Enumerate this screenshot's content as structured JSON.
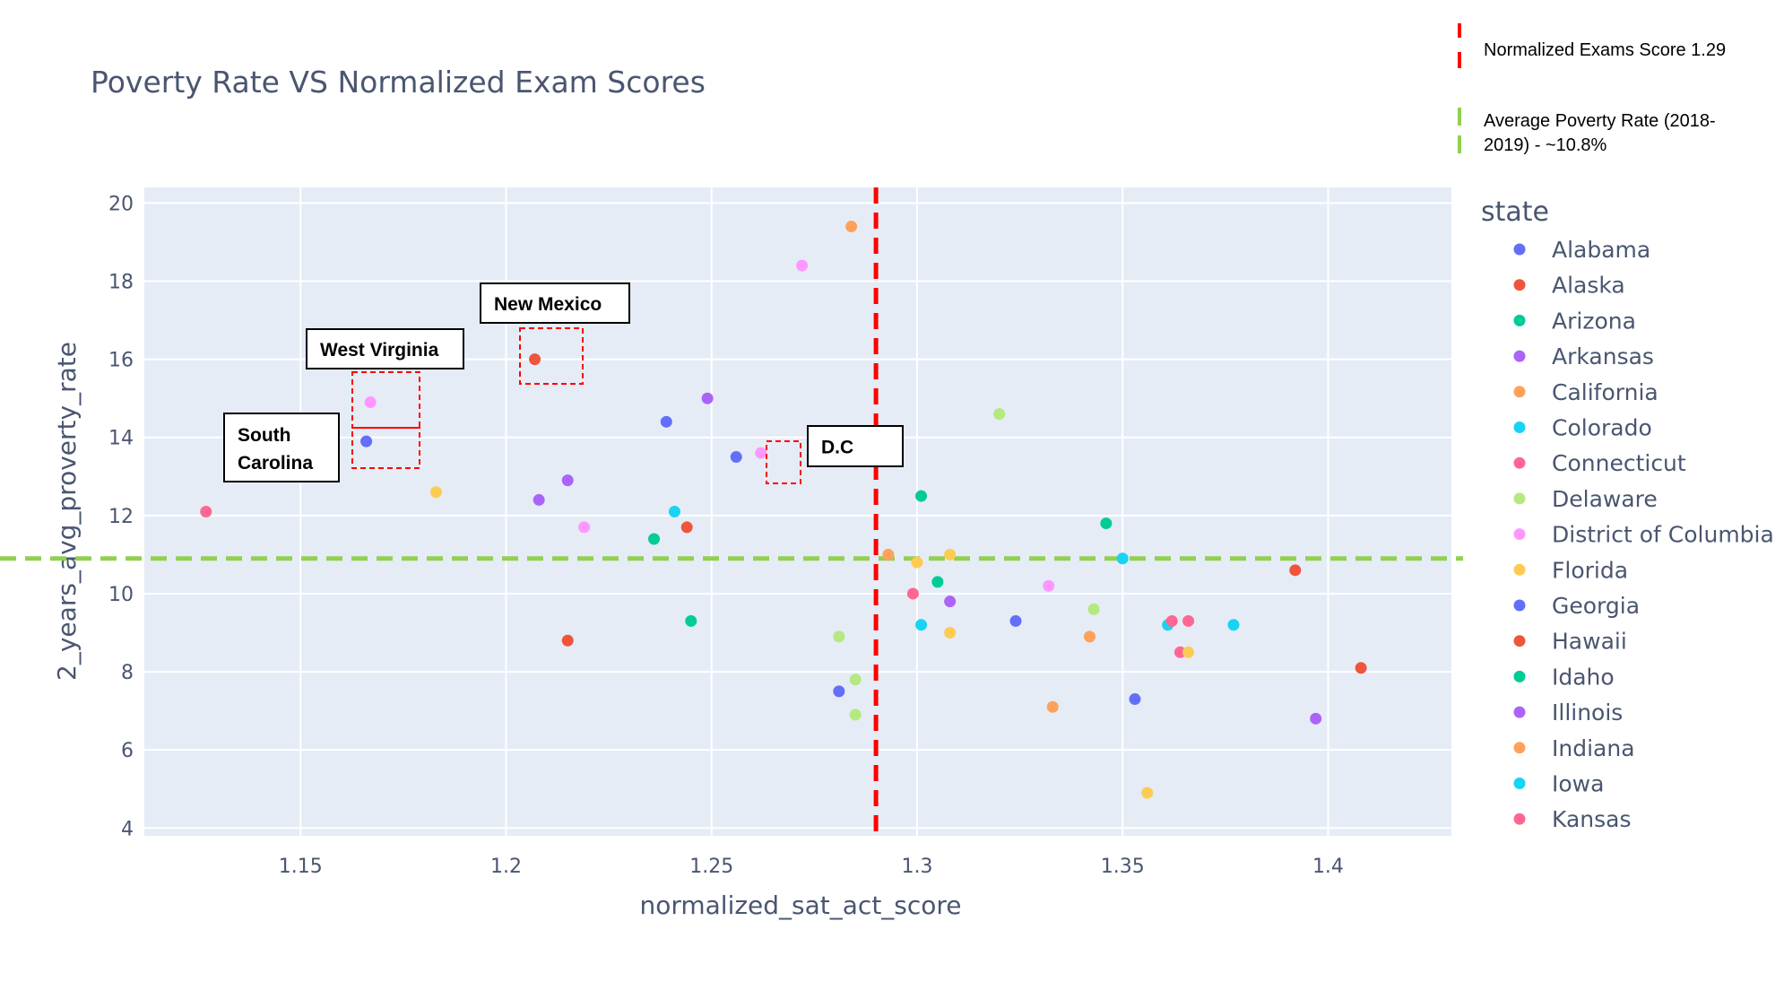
{
  "chart_data": {
    "type": "scatter",
    "title": "Poverty Rate VS Normalized Exam Scores",
    "xlabel": "normalized_sat_act_score",
    "ylabel": "2_years_avg_proverty_rate",
    "xlim": [
      1.112,
      1.43
    ],
    "ylim": [
      3.8,
      20.4
    ],
    "x_ticks": [
      {
        "value": 1.15,
        "label": "1.15"
      },
      {
        "value": 1.2,
        "label": "1.2"
      },
      {
        "value": 1.25,
        "label": "1.25"
      },
      {
        "value": 1.3,
        "label": "1.3"
      },
      {
        "value": 1.35,
        "label": "1.35"
      },
      {
        "value": 1.4,
        "label": "1.4"
      }
    ],
    "y_ticks": [
      {
        "value": 4,
        "label": "4"
      },
      {
        "value": 6,
        "label": "6"
      },
      {
        "value": 8,
        "label": "8"
      },
      {
        "value": 10,
        "label": "10"
      },
      {
        "value": 12,
        "label": "12"
      },
      {
        "value": 14,
        "label": "14"
      },
      {
        "value": 16,
        "label": "16"
      },
      {
        "value": 18,
        "label": "18"
      },
      {
        "value": 20,
        "label": "20"
      }
    ],
    "grid": true,
    "plot_background": "#e5ecf6",
    "legend": {
      "title": "state",
      "position": "right"
    },
    "series": [
      {
        "name": "Alabama",
        "color": "#636efa"
      },
      {
        "name": "Alaska",
        "color": "#ef553b"
      },
      {
        "name": "Arizona",
        "color": "#00cc96"
      },
      {
        "name": "Arkansas",
        "color": "#ab63fa"
      },
      {
        "name": "California",
        "color": "#ffa15a"
      },
      {
        "name": "Colorado",
        "color": "#19d3f3"
      },
      {
        "name": "Connecticut",
        "color": "#ff6692"
      },
      {
        "name": "Delaware",
        "color": "#b6e880"
      },
      {
        "name": "District of Columbia",
        "color": "#ff97ff"
      },
      {
        "name": "Florida",
        "color": "#fecb52"
      },
      {
        "name": "Georgia",
        "color": "#636efa"
      },
      {
        "name": "Hawaii",
        "color": "#ef553b"
      },
      {
        "name": "Idaho",
        "color": "#00cc96"
      },
      {
        "name": "Illinois",
        "color": "#ab63fa"
      },
      {
        "name": "Indiana",
        "color": "#ffa15a"
      },
      {
        "name": "Iowa",
        "color": "#19d3f3"
      },
      {
        "name": "Kansas",
        "color": "#ff6692"
      }
    ],
    "points": [
      {
        "x": 1.127,
        "y": 12.1,
        "color": "#ff6692"
      },
      {
        "x": 1.166,
        "y": 13.9,
        "color": "#636efa"
      },
      {
        "x": 1.167,
        "y": 14.9,
        "color": "#ff97ff"
      },
      {
        "x": 1.183,
        "y": 12.6,
        "color": "#fecb52"
      },
      {
        "x": 1.207,
        "y": 16.0,
        "color": "#ef553b"
      },
      {
        "x": 1.208,
        "y": 12.4,
        "color": "#ab63fa"
      },
      {
        "x": 1.215,
        "y": 12.9,
        "color": "#ab63fa"
      },
      {
        "x": 1.215,
        "y": 8.8,
        "color": "#ef553b"
      },
      {
        "x": 1.219,
        "y": 11.7,
        "color": "#ff97ff"
      },
      {
        "x": 1.236,
        "y": 11.4,
        "color": "#00cc96"
      },
      {
        "x": 1.239,
        "y": 14.4,
        "color": "#636efa"
      },
      {
        "x": 1.241,
        "y": 12.1,
        "color": "#19d3f3"
      },
      {
        "x": 1.244,
        "y": 11.7,
        "color": "#ef553b"
      },
      {
        "x": 1.245,
        "y": 9.3,
        "color": "#00cc96"
      },
      {
        "x": 1.249,
        "y": 15.0,
        "color": "#ab63fa"
      },
      {
        "x": 1.256,
        "y": 13.5,
        "color": "#636efa"
      },
      {
        "x": 1.262,
        "y": 13.6,
        "color": "#ff97ff"
      },
      {
        "x": 1.272,
        "y": 18.4,
        "color": "#ff97ff"
      },
      {
        "x": 1.281,
        "y": 8.9,
        "color": "#b6e880"
      },
      {
        "x": 1.281,
        "y": 7.5,
        "color": "#636efa"
      },
      {
        "x": 1.284,
        "y": 19.4,
        "color": "#ffa15a"
      },
      {
        "x": 1.285,
        "y": 7.8,
        "color": "#b6e880"
      },
      {
        "x": 1.285,
        "y": 6.9,
        "color": "#b6e880"
      },
      {
        "x": 1.293,
        "y": 11.0,
        "color": "#ffa15a"
      },
      {
        "x": 1.299,
        "y": 10.0,
        "color": "#ff6692"
      },
      {
        "x": 1.3,
        "y": 10.8,
        "color": "#fecb52"
      },
      {
        "x": 1.301,
        "y": 12.5,
        "color": "#00cc96"
      },
      {
        "x": 1.301,
        "y": 9.2,
        "color": "#19d3f3"
      },
      {
        "x": 1.305,
        "y": 10.3,
        "color": "#00cc96"
      },
      {
        "x": 1.308,
        "y": 11.0,
        "color": "#fecb52"
      },
      {
        "x": 1.308,
        "y": 9.8,
        "color": "#ab63fa"
      },
      {
        "x": 1.308,
        "y": 9.0,
        "color": "#fecb52"
      },
      {
        "x": 1.32,
        "y": 14.6,
        "color": "#b6e880"
      },
      {
        "x": 1.324,
        "y": 9.3,
        "color": "#636efa"
      },
      {
        "x": 1.332,
        "y": 10.2,
        "color": "#ff97ff"
      },
      {
        "x": 1.333,
        "y": 7.1,
        "color": "#ffa15a"
      },
      {
        "x": 1.342,
        "y": 8.9,
        "color": "#ffa15a"
      },
      {
        "x": 1.343,
        "y": 9.6,
        "color": "#b6e880"
      },
      {
        "x": 1.346,
        "y": 11.8,
        "color": "#00cc96"
      },
      {
        "x": 1.35,
        "y": 10.9,
        "color": "#19d3f3"
      },
      {
        "x": 1.353,
        "y": 7.3,
        "color": "#636efa"
      },
      {
        "x": 1.356,
        "y": 4.9,
        "color": "#fecb52"
      },
      {
        "x": 1.361,
        "y": 9.2,
        "color": "#19d3f3"
      },
      {
        "x": 1.362,
        "y": 9.3,
        "color": "#ff6692"
      },
      {
        "x": 1.364,
        "y": 8.5,
        "color": "#ff6692"
      },
      {
        "x": 1.366,
        "y": 8.5,
        "color": "#fecb52"
      },
      {
        "x": 1.366,
        "y": 9.3,
        "color": "#ff6692"
      },
      {
        "x": 1.377,
        "y": 9.2,
        "color": "#19d3f3"
      },
      {
        "x": 1.392,
        "y": 10.6,
        "color": "#ef553b"
      },
      {
        "x": 1.397,
        "y": 6.8,
        "color": "#ab63fa"
      },
      {
        "x": 1.408,
        "y": 8.1,
        "color": "#ef553b"
      }
    ],
    "reference_lines": [
      {
        "orientation": "vertical",
        "value": 1.29,
        "color": "#ff0000",
        "label": "Normalized Exams Score  1.29"
      },
      {
        "orientation": "horizontal",
        "value": 10.9,
        "color": "#92d050",
        "label_line1": "Average Poverty Rate (2018-",
        "label_line2": "2019) - ~10.8%"
      }
    ],
    "annotations": [
      {
        "label_line1": "New Mexico",
        "label_line2": "",
        "point": {
          "x": 1.207,
          "y": 16.0
        }
      },
      {
        "label_line1": "West Virginia",
        "label_line2": "",
        "point": {
          "x": 1.167,
          "y": 14.9
        }
      },
      {
        "label_line1": "South",
        "label_line2": "Carolina",
        "point": {
          "x": 1.166,
          "y": 13.9
        }
      },
      {
        "label_line1": "D.C",
        "label_line2": "",
        "point": {
          "x": 1.262,
          "y": 13.6
        }
      }
    ]
  }
}
